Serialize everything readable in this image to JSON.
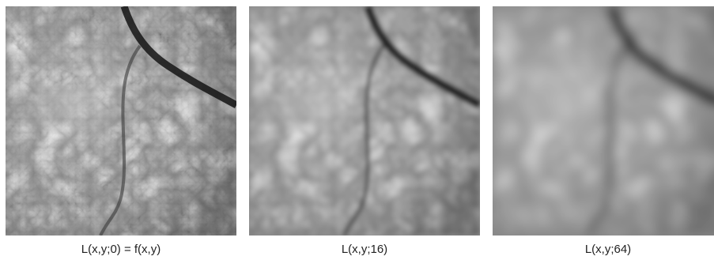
{
  "panels": [
    {
      "caption": "L(x,y;0) = f(x,y)",
      "scale": 0
    },
    {
      "caption": "L(x,y;16)",
      "scale": 16
    },
    {
      "caption": "L(x,y;64)",
      "scale": 64
    }
  ]
}
